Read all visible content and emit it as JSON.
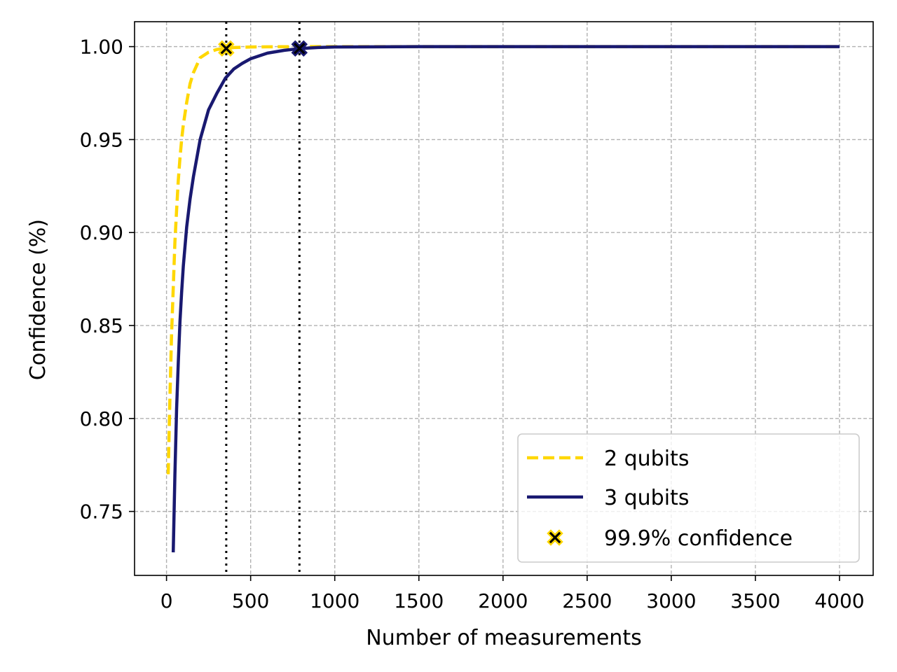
{
  "chart_data": {
    "type": "line",
    "xlabel": "Number of measurements",
    "ylabel": "Confidence (%)",
    "xlim": [
      -190,
      4200
    ],
    "ylim": [
      0.7156,
      1.0134
    ],
    "x_ticks": [
      0,
      500,
      1000,
      1500,
      2000,
      2500,
      3000,
      3500,
      4000
    ],
    "y_ticks": [
      0.75,
      0.8,
      0.85,
      0.9,
      0.95,
      1.0
    ],
    "y_tick_labels": [
      "0.75",
      "0.80",
      "0.85",
      "0.90",
      "0.95",
      "1.00"
    ],
    "grid": true,
    "legend_position": "lower-right",
    "series": [
      {
        "name": "2 qubits",
        "style": "dashed",
        "color": "#FFD700",
        "x": [
          10,
          20,
          30,
          40,
          50,
          60,
          70,
          80,
          90,
          100,
          120,
          140,
          160,
          180,
          200,
          250,
          300,
          350,
          400,
          500,
          600,
          800,
          1000,
          1500,
          2000,
          2500,
          3000,
          3500,
          4000
        ],
        "y": [
          0.77,
          0.81,
          0.845,
          0.87,
          0.895,
          0.912,
          0.928,
          0.94,
          0.95,
          0.958,
          0.97,
          0.98,
          0.986,
          0.99,
          0.994,
          0.997,
          0.9985,
          0.999,
          0.9995,
          0.9998,
          0.9999,
          1.0,
          1.0,
          1.0,
          1.0,
          1.0,
          1.0,
          1.0,
          1.0
        ]
      },
      {
        "name": "3 qubits",
        "style": "solid",
        "color": "#191970",
        "x": [
          40,
          50,
          60,
          70,
          80,
          90,
          100,
          120,
          140,
          160,
          180,
          200,
          250,
          300,
          350,
          400,
          450,
          500,
          600,
          700,
          800,
          900,
          1000,
          1500,
          2000,
          2500,
          3000,
          3500,
          4000
        ],
        "y": [
          0.728,
          0.77,
          0.805,
          0.83,
          0.852,
          0.868,
          0.882,
          0.903,
          0.918,
          0.93,
          0.94,
          0.95,
          0.966,
          0.975,
          0.983,
          0.988,
          0.991,
          0.9935,
          0.9965,
          0.998,
          0.999,
          0.9995,
          0.9998,
          1.0,
          1.0,
          1.0,
          1.0,
          1.0,
          1.0
        ]
      }
    ],
    "markers": {
      "name": "99.9% confidence",
      "color": "#000000",
      "edge_color": "#FFD700",
      "points": [
        {
          "x": 355,
          "y": 0.999,
          "series": "2 qubits"
        },
        {
          "x": 790,
          "y": 0.999,
          "series": "3 qubits"
        }
      ]
    },
    "vlines_x": [
      355,
      790
    ]
  }
}
